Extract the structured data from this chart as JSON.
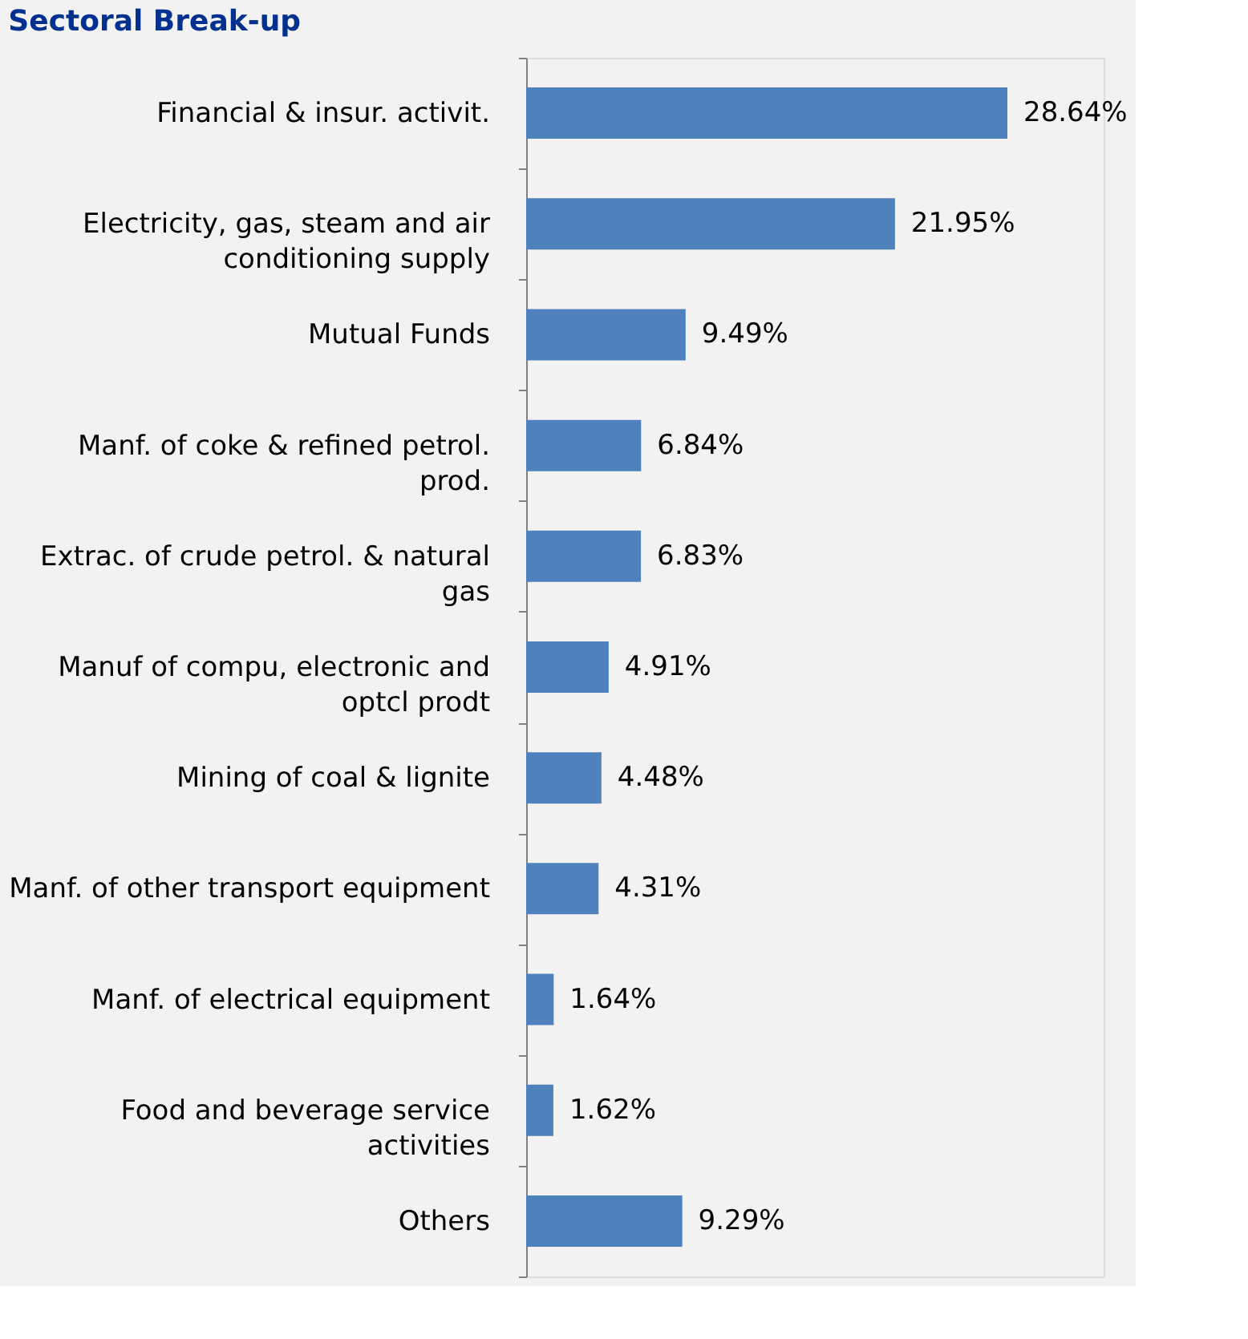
{
  "chart_data": {
    "type": "bar",
    "orientation": "horizontal",
    "title": "Sectoral Break-up",
    "categories": [
      "Financial & insur. activit.",
      "Electricity, gas, steam and air conditioning supply",
      "Mutual Funds",
      "Manf. of coke & refined petrol. prod.",
      "Extrac. of crude petrol. & natural gas",
      "Manuf of compu, electronic and optcl prodt",
      "Mining of coal & lignite",
      "Manf. of other transport equipment",
      "Manf. of electrical equipment",
      "Food and beverage service activities",
      "Others"
    ],
    "values": [
      28.64,
      21.95,
      9.49,
      6.84,
      6.83,
      4.91,
      4.48,
      4.31,
      1.64,
      1.62,
      9.29
    ],
    "value_labels": [
      "28.64%",
      "21.95%",
      "9.49%",
      "6.84%",
      "6.83%",
      "4.91%",
      "4.48%",
      "4.31%",
      "1.64%",
      "1.62%",
      "9.29%"
    ],
    "color": "#4f81bd"
  }
}
